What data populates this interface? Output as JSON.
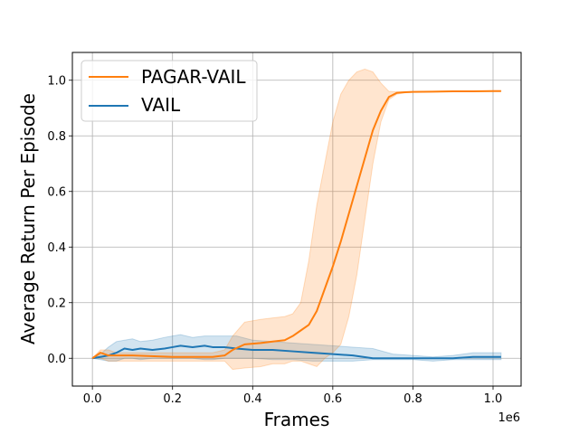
{
  "chart_data": {
    "type": "line",
    "title": "",
    "xlabel": "Frames",
    "ylabel": "Average Return Per Episode",
    "x_offset_label": "1e6",
    "xlim": [
      -0.05,
      1.07
    ],
    "ylim": [
      -0.1,
      1.1
    ],
    "xticks": [
      0.0,
      0.2,
      0.4,
      0.6,
      0.8,
      1.0
    ],
    "xtick_labels": [
      "0.0",
      "0.2",
      "0.4",
      "0.6",
      "0.8",
      "1.0"
    ],
    "yticks": [
      0.0,
      0.2,
      0.4,
      0.6,
      0.8,
      1.0
    ],
    "ytick_labels": [
      "0.0",
      "0.2",
      "0.4",
      "0.6",
      "0.8",
      "1.0"
    ],
    "grid": true,
    "legend_position": "top-left",
    "series": [
      {
        "name": "PAGAR-VAIL",
        "color": "#ff7f0e",
        "x": [
          0.0,
          0.02,
          0.04,
          0.06,
          0.1,
          0.2,
          0.3,
          0.33,
          0.35,
          0.38,
          0.42,
          0.45,
          0.48,
          0.5,
          0.52,
          0.54,
          0.56,
          0.58,
          0.6,
          0.62,
          0.64,
          0.66,
          0.68,
          0.7,
          0.72,
          0.74,
          0.76,
          0.78,
          0.8,
          0.85,
          0.9,
          0.95,
          1.0,
          1.02
        ],
        "y": [
          0.0,
          0.02,
          0.01,
          0.01,
          0.01,
          0.005,
          0.005,
          0.01,
          0.03,
          0.05,
          0.055,
          0.06,
          0.065,
          0.08,
          0.1,
          0.12,
          0.17,
          0.25,
          0.33,
          0.42,
          0.52,
          0.62,
          0.72,
          0.82,
          0.89,
          0.94,
          0.955,
          0.957,
          0.958,
          0.959,
          0.96,
          0.96,
          0.961,
          0.961
        ],
        "lower": [
          0.0,
          0.0,
          -0.01,
          -0.01,
          -0.01,
          -0.01,
          -0.01,
          -0.01,
          -0.04,
          -0.035,
          -0.03,
          -0.02,
          -0.02,
          -0.01,
          -0.01,
          -0.02,
          -0.03,
          0.0,
          0.02,
          0.05,
          0.15,
          0.3,
          0.5,
          0.7,
          0.85,
          0.93,
          0.95,
          0.955,
          0.957,
          0.958,
          0.959,
          0.96,
          0.96,
          0.96
        ],
        "upper": [
          0.0,
          0.03,
          0.03,
          0.02,
          0.02,
          0.02,
          0.02,
          0.03,
          0.08,
          0.13,
          0.14,
          0.145,
          0.15,
          0.16,
          0.2,
          0.35,
          0.55,
          0.7,
          0.85,
          0.95,
          1.0,
          1.03,
          1.04,
          1.03,
          0.99,
          0.96,
          0.958,
          0.958,
          0.959,
          0.96,
          0.961,
          0.961,
          0.962,
          0.962
        ]
      },
      {
        "name": "VAIL",
        "color": "#1f77b4",
        "x": [
          0.0,
          0.02,
          0.04,
          0.06,
          0.08,
          0.1,
          0.12,
          0.15,
          0.18,
          0.2,
          0.22,
          0.25,
          0.28,
          0.3,
          0.33,
          0.36,
          0.4,
          0.45,
          0.5,
          0.55,
          0.6,
          0.65,
          0.7,
          0.75,
          0.8,
          0.85,
          0.9,
          0.95,
          1.0,
          1.02
        ],
        "y": [
          0.0,
          0.005,
          0.01,
          0.02,
          0.035,
          0.03,
          0.035,
          0.03,
          0.035,
          0.04,
          0.045,
          0.04,
          0.045,
          0.04,
          0.04,
          0.035,
          0.03,
          0.03,
          0.025,
          0.02,
          0.015,
          0.01,
          0.0,
          0.0,
          0.0,
          0.0,
          0.0,
          0.005,
          0.005,
          0.005
        ],
        "lower": [
          0.0,
          -0.005,
          -0.01,
          -0.01,
          0.0,
          0.0,
          -0.005,
          0.0,
          0.0,
          0.0,
          0.0,
          0.0,
          -0.005,
          -0.005,
          0.0,
          0.0,
          0.0,
          -0.005,
          -0.005,
          -0.01,
          -0.01,
          -0.01,
          -0.005,
          -0.005,
          -0.005,
          -0.01,
          -0.005,
          -0.005,
          -0.005,
          -0.005
        ],
        "upper": [
          0.0,
          0.015,
          0.04,
          0.06,
          0.065,
          0.07,
          0.06,
          0.065,
          0.075,
          0.08,
          0.085,
          0.075,
          0.08,
          0.08,
          0.08,
          0.08,
          0.065,
          0.06,
          0.055,
          0.05,
          0.045,
          0.04,
          0.035,
          0.015,
          0.01,
          0.005,
          0.01,
          0.02,
          0.02,
          0.02
        ]
      }
    ]
  }
}
